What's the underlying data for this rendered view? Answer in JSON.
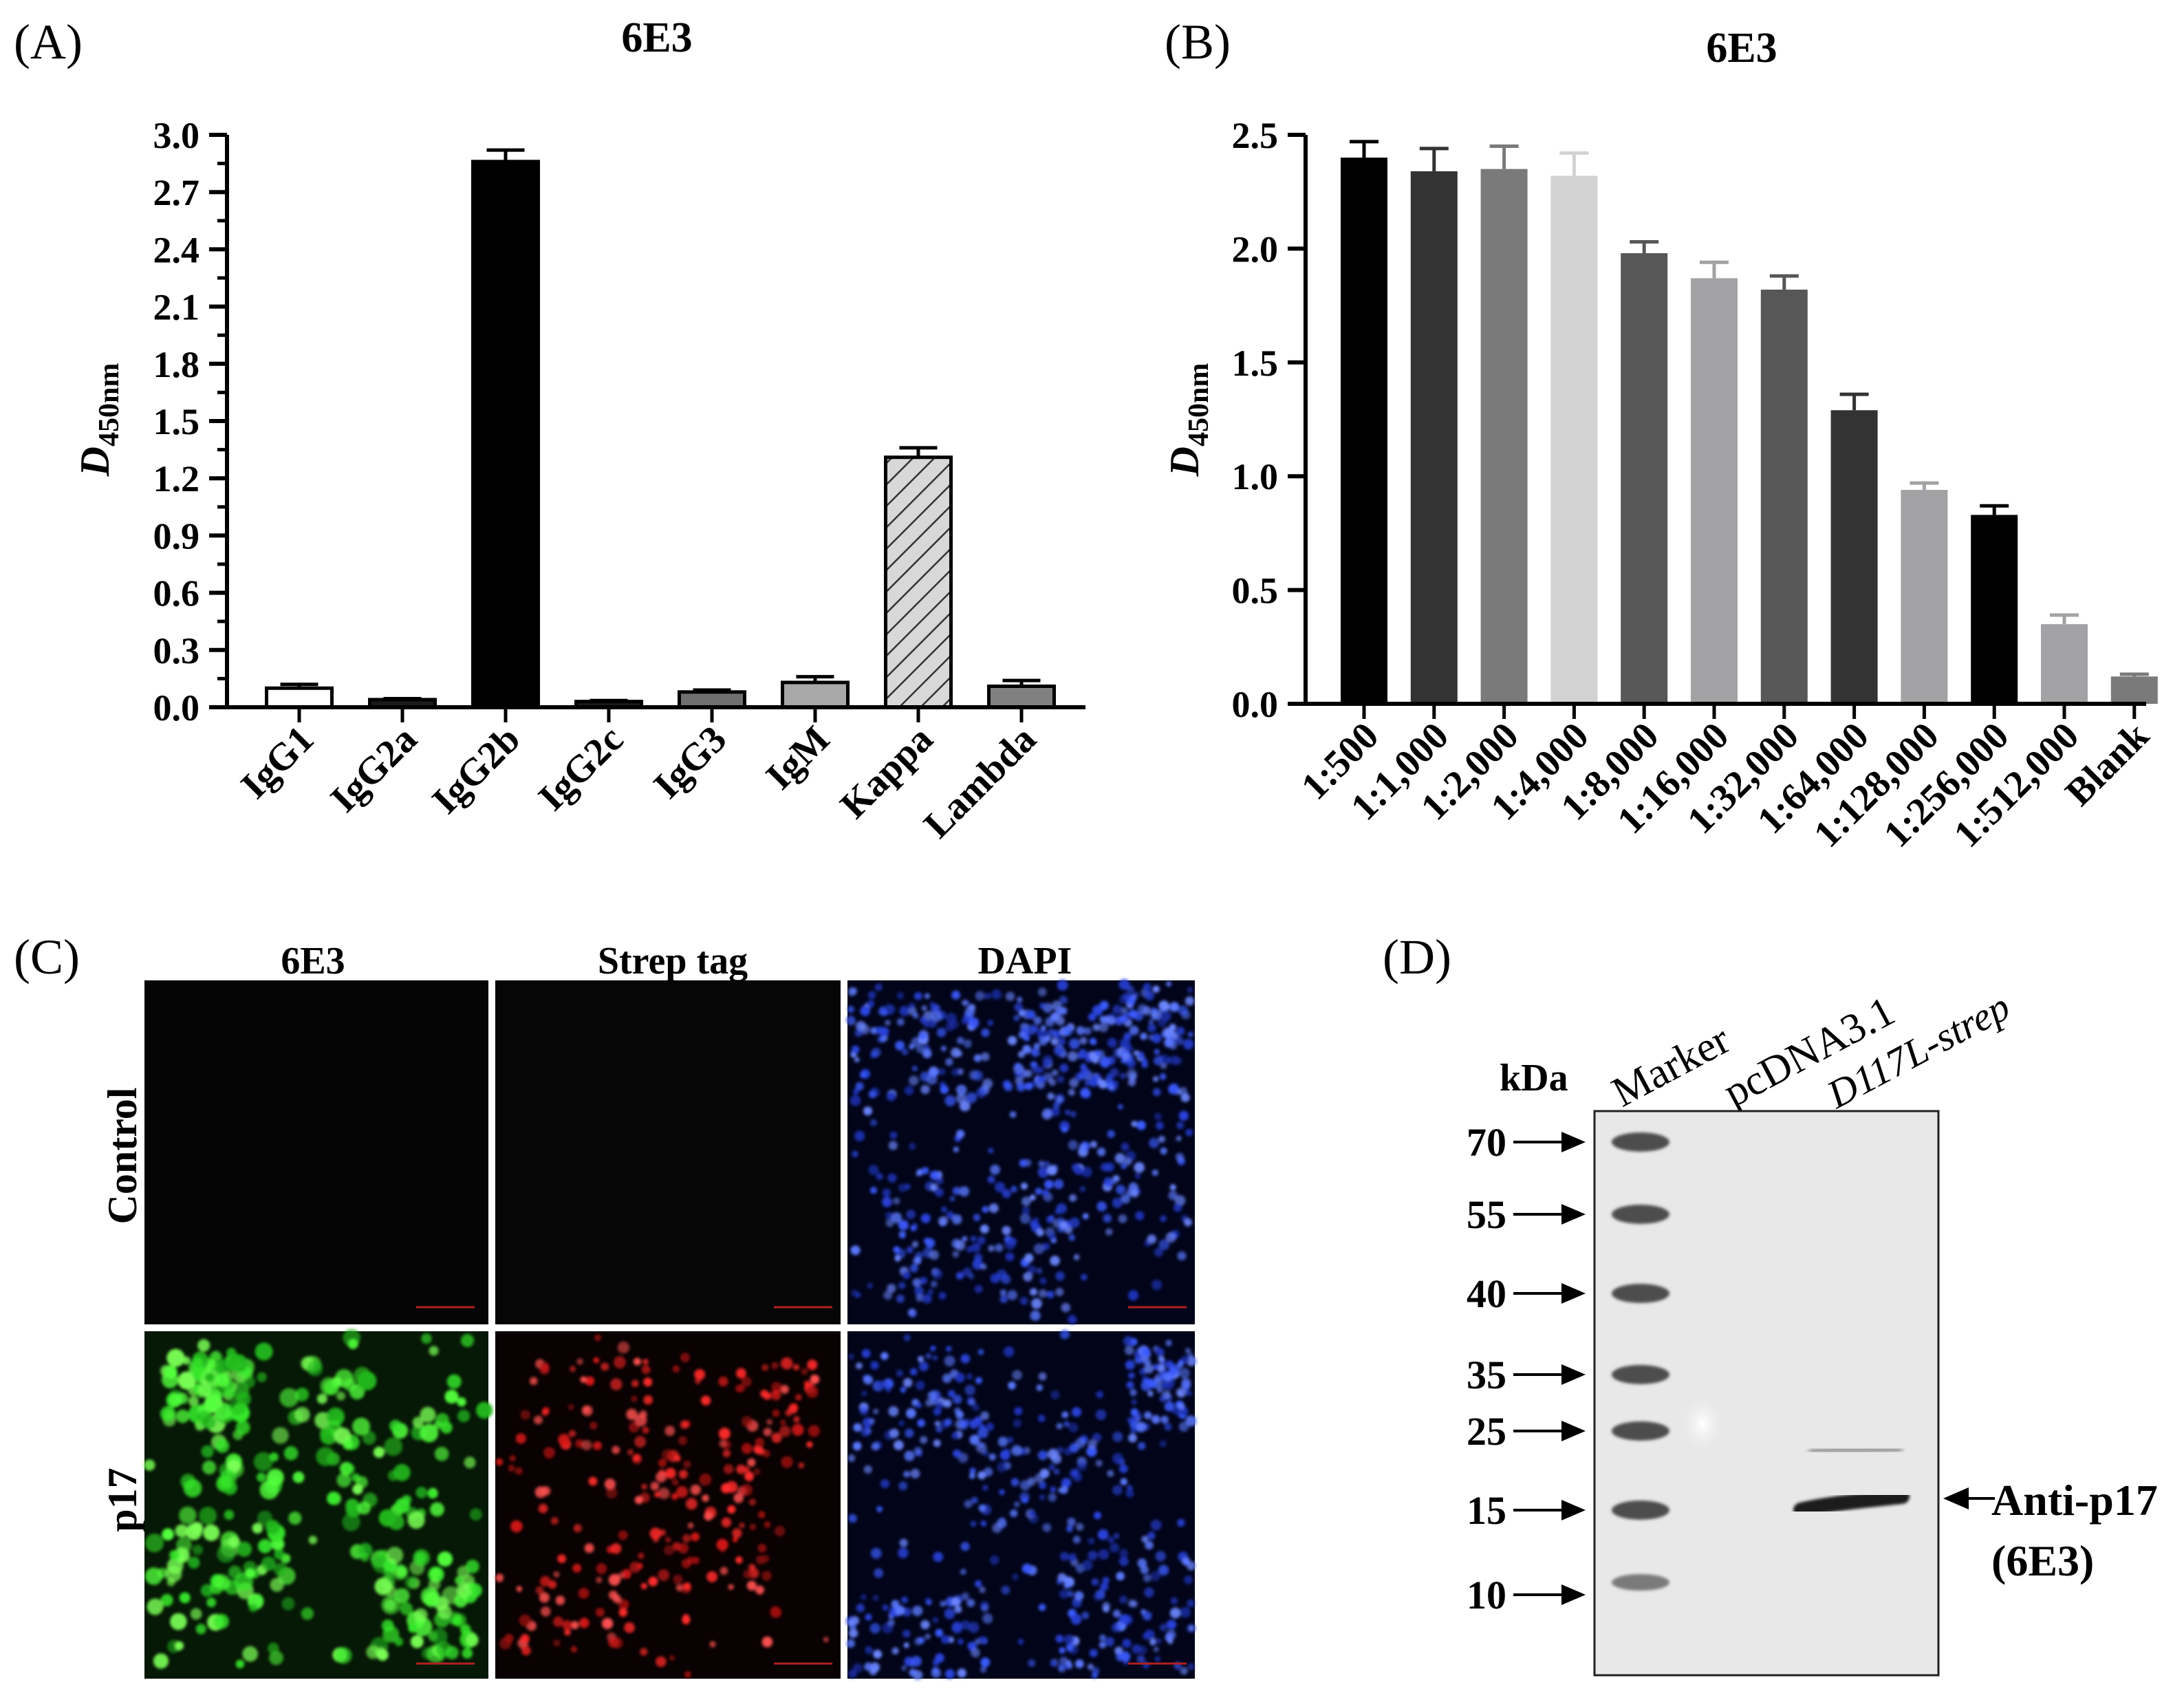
{
  "panel_labels": {
    "a": "(A)",
    "b": "(B)",
    "c": "(C)",
    "d": "(D)"
  },
  "chart_data": [
    {
      "type": "bar",
      "title": "6E3",
      "ylabel_main": "D",
      "ylabel_sub": "450nm",
      "xlabel": "",
      "ylim": [
        0,
        3.0
      ],
      "yticks": [
        "0.0",
        "0.3",
        "0.6",
        "0.9",
        "1.2",
        "1.5",
        "1.8",
        "2.1",
        "2.4",
        "2.7",
        "3.0"
      ],
      "categories": [
        "IgG1",
        "IgG2a",
        "IgG2b",
        "IgG2c",
        "IgG3",
        "IgM",
        "Kappa",
        "Lambda"
      ],
      "values": [
        0.1,
        0.04,
        2.86,
        0.03,
        0.08,
        0.13,
        1.31,
        0.11
      ],
      "errors": [
        0.02,
        0.005,
        0.06,
        0.005,
        0.01,
        0.03,
        0.05,
        0.03
      ],
      "colors": [
        "#ffffff",
        "#1a1a1a",
        "#000000",
        "#1a1a1a",
        "#707070",
        "#a8a8a8",
        "#d8d8d8",
        "#808080"
      ]
    },
    {
      "type": "bar",
      "title": "6E3",
      "ylabel_main": "D",
      "ylabel_sub": "450nm",
      "xlabel": "",
      "ylim": [
        0,
        2.5
      ],
      "yticks": [
        "0.0",
        "0.5",
        "1.0",
        "1.5",
        "2.0",
        "2.5"
      ],
      "categories": [
        "1:500",
        "1:1,000",
        "1:2,000",
        "1:4,000",
        "1:8,000",
        "1:16,000",
        "1:32,000",
        "1:64,000",
        "1:128,000",
        "1:256,000",
        "1:512,000",
        "Blank"
      ],
      "values": [
        2.4,
        2.34,
        2.35,
        2.32,
        1.98,
        1.87,
        1.82,
        1.29,
        0.94,
        0.83,
        0.35,
        0.12
      ],
      "errors": [
        0.07,
        0.1,
        0.1,
        0.1,
        0.05,
        0.07,
        0.06,
        0.07,
        0.03,
        0.04,
        0.04,
        0.01
      ],
      "colors": [
        "#000000",
        "#333333",
        "#7a7a7a",
        "#d2d2d2",
        "#575757",
        "#a2a2a4",
        "#575757",
        "#333333",
        "#a2a2a4",
        "#000000",
        "#a2a2a4",
        "#7a7a7a"
      ]
    }
  ],
  "panel_c": {
    "columns": [
      "6E3",
      "Strep tag",
      "DAPI"
    ],
    "rows": [
      "Control",
      "p17"
    ]
  },
  "panel_d": {
    "unit": "kDa",
    "lanes": [
      "Marker",
      "pcDNA3.1",
      "D117L-strep"
    ],
    "markers": [
      "70",
      "55",
      "40",
      "35",
      "25",
      "15",
      "10"
    ],
    "band_label_line1": "Anti-p17",
    "band_label_line2": "(6E3)"
  }
}
